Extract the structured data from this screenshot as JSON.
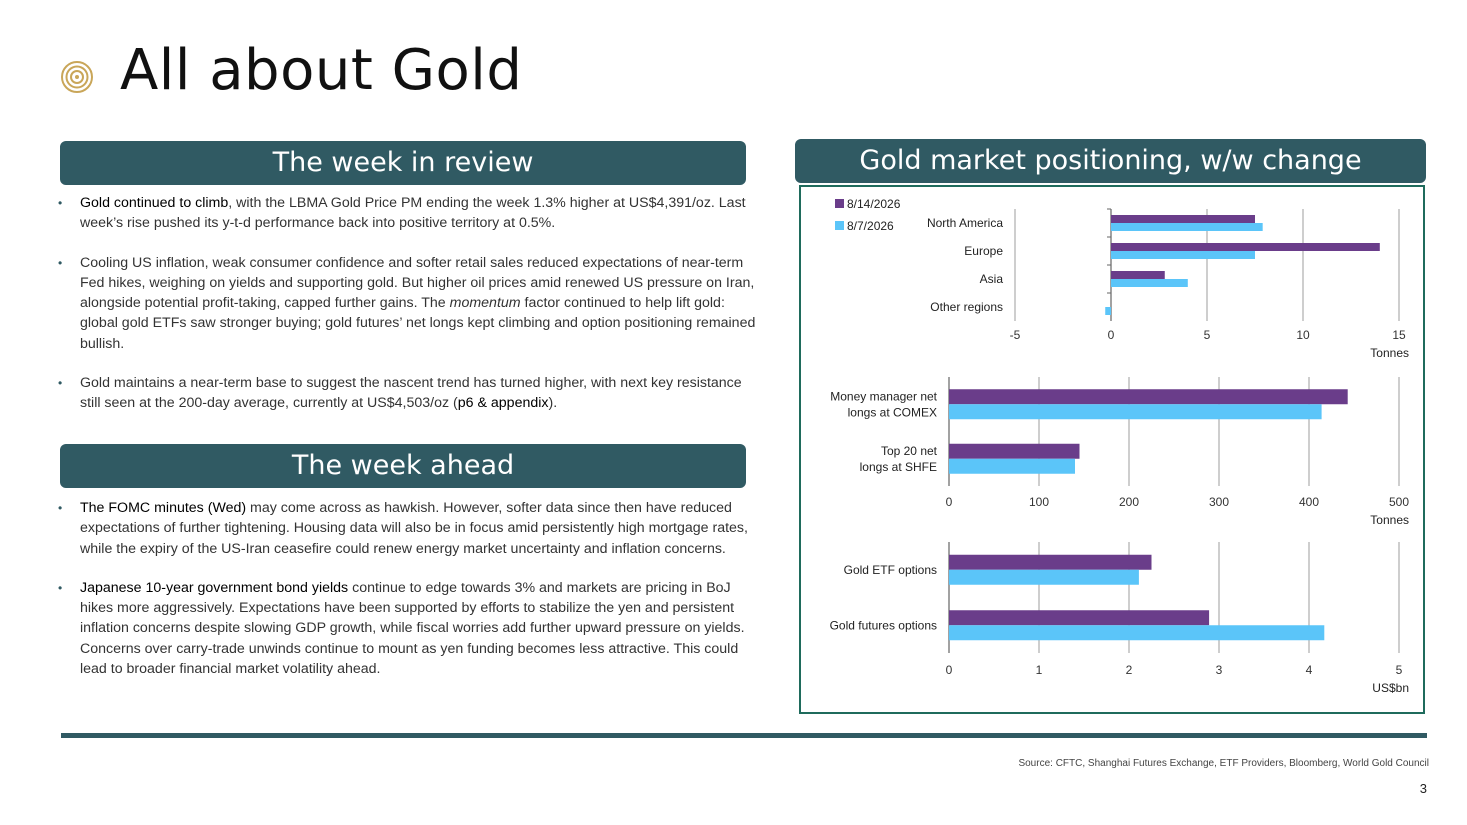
{
  "page": {
    "title": "All about Gold",
    "page_number": "3",
    "source": "Source: CFTC, Shanghai Futures Exchange, ETF Providers, Bloomberg, World Gold Council"
  },
  "colors": {
    "header_bg": "#305a63",
    "series_current": "#6a3d8a",
    "series_previous": "#5bc5f9",
    "chart_border": "#1f6b5c",
    "icon_gold": "#c9a659"
  },
  "review": {
    "header": "The week in review",
    "bullets": [
      {
        "lead": "Gold continued to climb",
        "text": ", with the LBMA Gold Price PM ending the week 1.3% higher at US$4,391/oz. Last week’s rise pushed its y-t-d performance back into positive territory at 0.5%."
      },
      {
        "text_a": "Cooling US inflation, weak consumer confidence and softer retail sales reduced expectations of near-term Fed hikes, weighing on yields and supporting gold. But higher oil prices amid renewed US pressure on Iran, alongside potential profit-taking, capped further gains. The ",
        "italic": "momentum",
        "text_b": " factor continued to help lift gold: global gold ETFs saw stronger buying; gold futures’ net longs kept climbing and option positioning remained bullish."
      },
      {
        "text": "Gold maintains a near-term base to suggest the nascent trend has turned higher, with next key resistance still seen at the 200-day average, currently at US$4,503/oz (",
        "link": "p6 & appendix",
        "tail": ")."
      }
    ]
  },
  "ahead": {
    "header": "The week ahead",
    "bullets": [
      {
        "lead": "The FOMC minutes (Wed)",
        "text": " may come across as hawkish. However, softer data since then have reduced expectations of further tightening. Housing data will also be in focus amid persistently high mortgage rates, while the expiry of the US-Iran ceasefire could renew energy market uncertainty and inflation concerns."
      },
      {
        "lead": "Japanese 10-year government bond yields",
        "text": " continue to edge towards 3% and markets are pricing in BoJ hikes more aggressively. Expectations have been supported by efforts to stabilize the yen and persistent inflation concerns despite slowing GDP growth, while fiscal worries add further upward pressure on yields. Concerns over carry-trade unwinds continue to mount as yen funding becomes less attractive. This could lead to broader financial market volatility ahead."
      }
    ]
  },
  "chart_section": {
    "header": "Gold market positioning, w/w change"
  },
  "chart_data": [
    {
      "type": "bar",
      "orientation": "horizontal",
      "categories": [
        "North America",
        "Europe",
        "Asia",
        "Other regions"
      ],
      "series": [
        {
          "name": "8/14/2026",
          "values": [
            7.5,
            14.0,
            2.8,
            0.0
          ]
        },
        {
          "name": "8/7/2026",
          "values": [
            7.9,
            7.5,
            4.0,
            -0.3
          ]
        }
      ],
      "xlim": [
        -5,
        15
      ],
      "ticks": [
        -5,
        0,
        5,
        10,
        15
      ],
      "xlabel": "Tonnes",
      "legend": "top-left",
      "grid": true
    },
    {
      "type": "bar",
      "orientation": "horizontal",
      "categories": [
        "Money manager net longs at COMEX",
        "Top 20 net longs at SHFE"
      ],
      "series": [
        {
          "name": "8/14/2026",
          "values": [
            443,
            145
          ]
        },
        {
          "name": "8/7/2026",
          "values": [
            414,
            140
          ]
        }
      ],
      "xlim": [
        0,
        500
      ],
      "ticks": [
        0,
        100,
        200,
        300,
        400,
        500
      ],
      "xlabel": "Tonnes",
      "grid": true
    },
    {
      "type": "bar",
      "orientation": "horizontal",
      "categories": [
        "Gold ETF options",
        "Gold futures options"
      ],
      "series": [
        {
          "name": "8/14/2026",
          "values": [
            2.25,
            2.89
          ]
        },
        {
          "name": "8/7/2026",
          "values": [
            2.11,
            4.17
          ]
        }
      ],
      "xlim": [
        0,
        5
      ],
      "ticks": [
        0,
        1,
        2,
        3,
        4,
        5
      ],
      "xlabel": "US$bn",
      "grid": true
    }
  ]
}
